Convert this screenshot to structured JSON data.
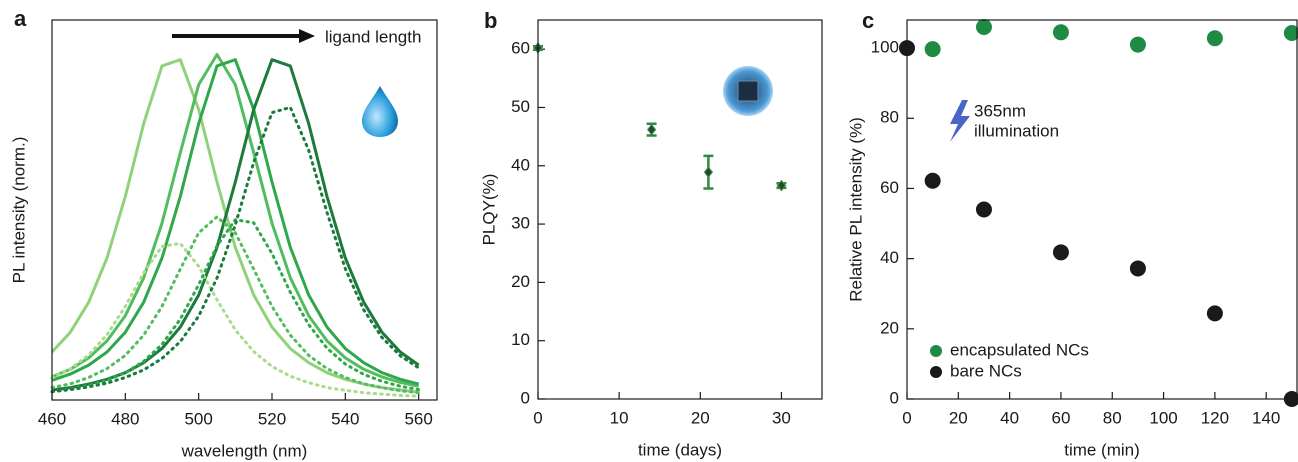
{
  "chart_data": [
    {
      "type": "line",
      "label": "a",
      "xlabel": "wavelength (nm)",
      "ylabel": "PL intensity (norm.)",
      "annotation": "ligand length",
      "xlim": [
        460,
        565
      ],
      "ylim": [
        0,
        1.1
      ],
      "xticks": [
        460,
        480,
        500,
        520,
        540,
        560
      ],
      "x": [
        460,
        465,
        470,
        475,
        480,
        485,
        490,
        495,
        500,
        505,
        510,
        515,
        520,
        525,
        530,
        535,
        540,
        545,
        550,
        555,
        560
      ],
      "series": [
        {
          "color": "#8fd27a",
          "linestyle": "solid",
          "values": [
            0.139,
            0.196,
            0.283,
            0.411,
            0.589,
            0.8,
            0.967,
            0.985,
            0.841,
            0.631,
            0.442,
            0.304,
            0.211,
            0.149,
            0.108,
            0.079,
            0.06,
            0.046,
            0.036,
            0.029,
            0.023
          ]
        },
        {
          "color": "#52bd5e",
          "linestyle": "solid",
          "values": [
            0.067,
            0.089,
            0.122,
            0.171,
            0.244,
            0.354,
            0.512,
            0.716,
            0.913,
            1,
            0.913,
            0.716,
            0.512,
            0.354,
            0.244,
            0.171,
            0.122,
            0.089,
            0.067,
            0.051,
            0.04
          ]
        },
        {
          "color": "#2ea84a",
          "linestyle": "solid",
          "values": [
            0.057,
            0.075,
            0.101,
            0.139,
            0.196,
            0.283,
            0.411,
            0.589,
            0.8,
            0.967,
            0.985,
            0.841,
            0.631,
            0.442,
            0.304,
            0.211,
            0.149,
            0.108,
            0.079,
            0.06,
            0.046
          ]
        },
        {
          "color": "#1c7a3c",
          "linestyle": "solid",
          "values": [
            0.029,
            0.036,
            0.046,
            0.06,
            0.079,
            0.108,
            0.149,
            0.211,
            0.304,
            0.442,
            0.631,
            0.841,
            0.985,
            0.967,
            0.8,
            0.589,
            0.411,
            0.283,
            0.196,
            0.139,
            0.101
          ]
        },
        {
          "color": "#a9db8c",
          "linestyle": "dotted",
          "values": [
            0.064,
            0.09,
            0.13,
            0.189,
            0.271,
            0.368,
            0.445,
            0.453,
            0.387,
            0.29,
            0.203,
            0.14,
            0.097,
            0.069,
            0.05,
            0.036,
            0.028,
            0.021,
            0.017,
            0.013,
            0.011
          ]
        },
        {
          "color": "#52bd5e",
          "linestyle": "dotted",
          "values": [
            0.036,
            0.047,
            0.065,
            0.091,
            0.129,
            0.188,
            0.271,
            0.379,
            0.484,
            0.53,
            0.484,
            0.379,
            0.271,
            0.188,
            0.129,
            0.091,
            0.065,
            0.047,
            0.036,
            0.027,
            0.021
          ]
        },
        {
          "color": "#2ea84a",
          "linestyle": "dotted",
          "values": [
            0.024,
            0.032,
            0.042,
            0.057,
            0.079,
            0.112,
            0.161,
            0.234,
            0.334,
            0.446,
            0.522,
            0.513,
            0.424,
            0.312,
            0.218,
            0.15,
            0.104,
            0.074,
            0.054,
            0.04,
            0.03
          ]
        },
        {
          "color": "#1c7a3c",
          "linestyle": "dotted",
          "values": [
            0.024,
            0.03,
            0.038,
            0.049,
            0.065,
            0.087,
            0.12,
            0.169,
            0.243,
            0.353,
            0.507,
            0.688,
            0.832,
            0.847,
            0.723,
            0.543,
            0.38,
            0.261,
            0.181,
            0.128,
            0.093
          ]
        }
      ]
    },
    {
      "type": "scatter",
      "label": "b",
      "xlabel": "time (days)",
      "ylabel": "PLQY(%)",
      "xlim": [
        0,
        35
      ],
      "ylim": [
        0,
        65
      ],
      "xticks": [
        0,
        10,
        20,
        30
      ],
      "yticks": [
        0,
        10,
        20,
        30,
        40,
        50,
        60
      ],
      "series": [
        {
          "color": "#1f4d2b",
          "error_color": "#2e8b3e",
          "marker": "diamond",
          "x": [
            0,
            14,
            21,
            30
          ],
          "values": [
            60.2,
            46.2,
            38.9,
            36.6
          ],
          "errors": [
            0.3,
            1.0,
            2.8,
            0.4
          ]
        }
      ]
    },
    {
      "type": "scatter",
      "label": "c",
      "xlabel": "time (min)",
      "ylabel": "Relative PL intensity (%)",
      "annotation": [
        "365nm",
        "illumination"
      ],
      "xlim": [
        0,
        152
      ],
      "ylim": [
        0,
        108
      ],
      "xticks": [
        0,
        20,
        40,
        60,
        80,
        100,
        120,
        140
      ],
      "yticks": [
        0,
        20,
        40,
        60,
        80,
        100
      ],
      "legend": "lower left",
      "series": [
        {
          "name": "encapsulated NCs",
          "color": "#1f8a44",
          "marker": "circle",
          "x": [
            10,
            30,
            60,
            90,
            120,
            150
          ],
          "values": [
            99.7,
            106,
            104.5,
            101,
            102.8,
            104.3
          ]
        },
        {
          "name": "bare NCs",
          "color": "#1a1a1a",
          "marker": "circle",
          "x": [
            0,
            10,
            30,
            60,
            90,
            120,
            150
          ],
          "values": [
            100,
            62.2,
            54,
            41.8,
            37.2,
            24.4,
            0
          ]
        }
      ]
    }
  ]
}
